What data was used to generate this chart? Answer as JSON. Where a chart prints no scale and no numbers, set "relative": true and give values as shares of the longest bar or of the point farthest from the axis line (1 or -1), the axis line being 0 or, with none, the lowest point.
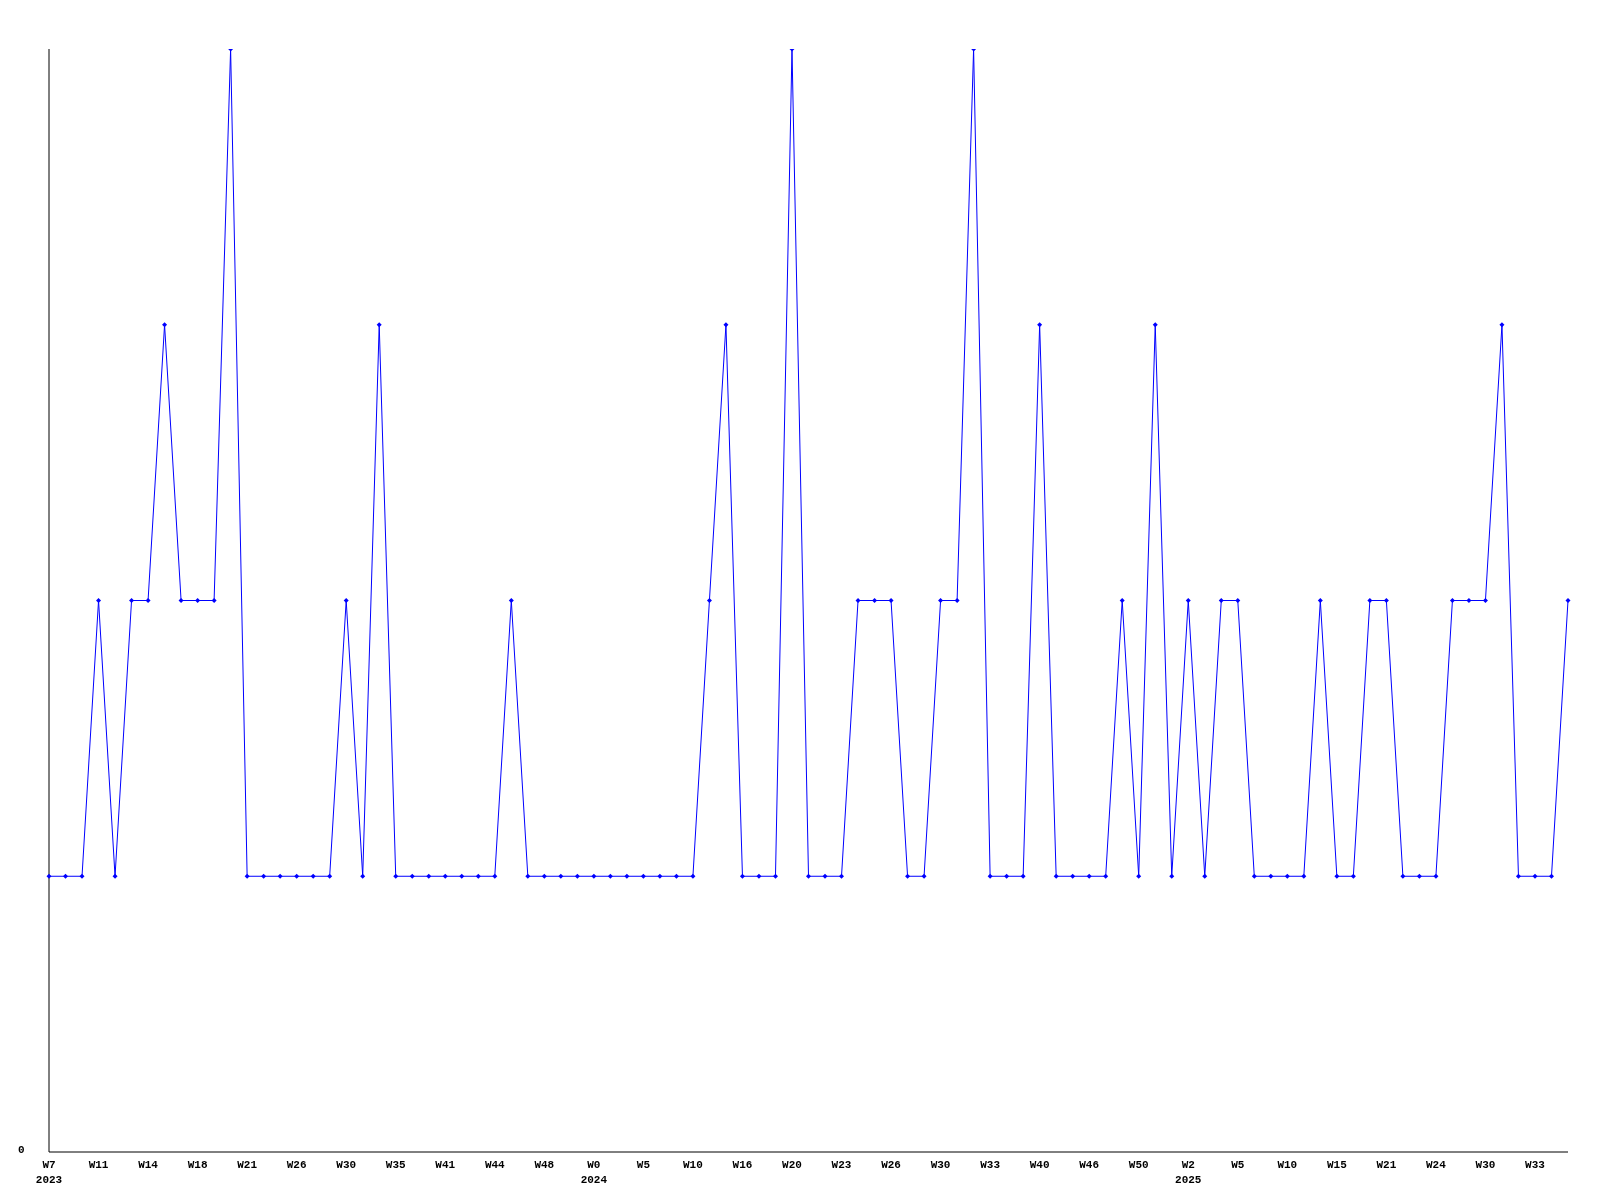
{
  "chart_data": {
    "type": "line",
    "relative": true,
    "color": "#0000ff",
    "marker": "diamond",
    "grid": false,
    "legend": false,
    "categories": [
      "W7\n2023",
      null,
      null,
      "W11",
      null,
      null,
      "W14",
      null,
      null,
      "W18",
      null,
      null,
      "W21",
      null,
      null,
      "W26",
      null,
      null,
      "W30",
      null,
      null,
      "W35",
      null,
      null,
      "W41",
      null,
      null,
      "W44",
      null,
      null,
      "W48",
      null,
      null,
      "W0\n2024",
      null,
      null,
      "W5",
      null,
      null,
      "W10",
      null,
      null,
      "W16",
      null,
      null,
      "W20",
      null,
      null,
      "W23",
      null,
      null,
      "W26",
      null,
      null,
      "W30",
      null,
      null,
      "W33",
      null,
      null,
      "W40",
      null,
      null,
      "W46",
      null,
      null,
      "W50",
      null,
      null,
      "W2\n2025",
      null,
      null,
      "W5",
      null,
      null,
      "W10",
      null,
      null,
      "W15",
      null,
      null,
      "W21",
      null,
      null,
      "W24",
      null,
      null,
      "W30",
      null,
      null,
      "W33",
      null,
      null
    ],
    "values": [
      0.25,
      0.25,
      0.25,
      0.5,
      0.25,
      0.5,
      0.5,
      0.75,
      0.5,
      0.5,
      0.5,
      1,
      0.25,
      0.25,
      0.25,
      0.25,
      0.25,
      0.25,
      0.5,
      0.25,
      0.75,
      0.25,
      0.25,
      0.25,
      0.25,
      0.25,
      0.25,
      0.25,
      0.5,
      0.25,
      0.25,
      0.25,
      0.25,
      0.25,
      0.25,
      0.25,
      0.25,
      0.25,
      0.25,
      0.25,
      0.5,
      0.75,
      0.25,
      0.25,
      0.25,
      1,
      0.25,
      0.25,
      0.25,
      0.5,
      0.5,
      0.5,
      0.25,
      0.25,
      0.5,
      0.5,
      1,
      0.25,
      0.25,
      0.25,
      0.75,
      0.25,
      0.25,
      0.25,
      0.25,
      0.5,
      0.25,
      0.75,
      0.25,
      0.5,
      0.25,
      0.5,
      0.5,
      0.25,
      0.25,
      0.25,
      0.25,
      0.5,
      0.25,
      0.25,
      0.5,
      0.5,
      0.25,
      0.25,
      0.25,
      0.5,
      0.5,
      0.5,
      0.75,
      0.25,
      0.25,
      0.25,
      0.5
    ],
    "annotations": [
      "0"
    ]
  }
}
